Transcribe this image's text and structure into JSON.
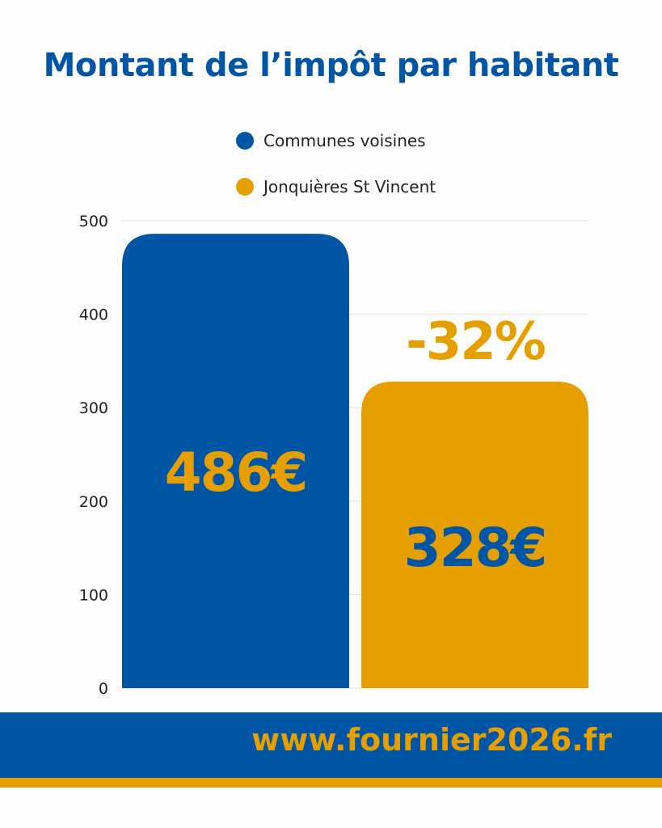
{
  "colors": {
    "blue": "#0055a4",
    "orange": "#e5a000"
  },
  "chart_data": {
    "type": "bar",
    "title": "Montant de l’impôt par habitant",
    "categories": [
      "Communes voisines",
      "Jonquières St Vincent"
    ],
    "values": [
      486,
      328
    ],
    "data_labels": [
      "486€",
      "328€"
    ],
    "annotation": "-32%",
    "legend": [
      "Communes voisines",
      "Jonquières St Vincent"
    ],
    "legend_placement": "top",
    "ylim": [
      0,
      500
    ],
    "yticks": [
      0,
      100,
      200,
      300,
      400,
      500
    ],
    "grid": true,
    "xlabel": "",
    "ylabel": ""
  },
  "footer": {
    "url": "www.fournier2026.fr"
  }
}
